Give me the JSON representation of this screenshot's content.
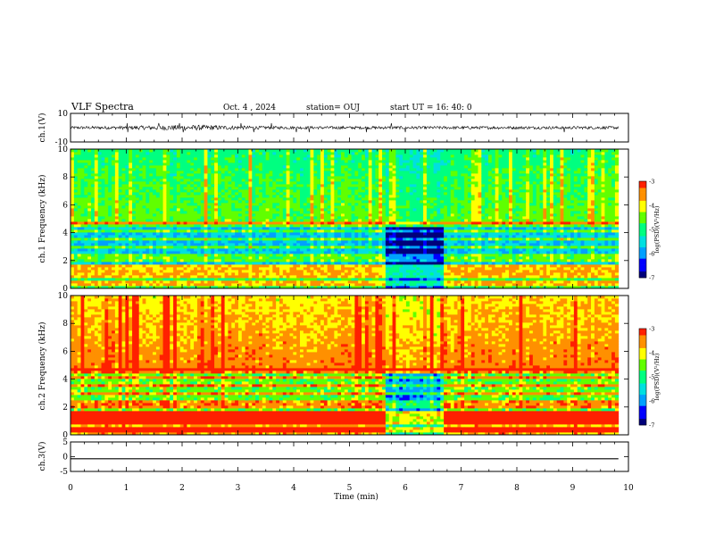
{
  "header": {
    "title": "VLF Spectra",
    "date": "Oct. 4 , 2024",
    "station": "station= OUJ",
    "start": "start UT = 16: 40: 0"
  },
  "chart_data": [
    {
      "type": "line",
      "panel": "ch1-waveform",
      "ylabel": "ch.1(V)",
      "ylim": [
        -10,
        10
      ],
      "yticks": [
        "10",
        "-10"
      ],
      "xlim": [
        0,
        10
      ],
      "x_extent_min": [
        0,
        9.82
      ],
      "baseline": 0,
      "noise_amplitude": 1,
      "spike_times_min": [
        1.02,
        1.58,
        1.95,
        2.02,
        3.06,
        3.28,
        3.6,
        4.05,
        4.28,
        5.3,
        5.75,
        6.0,
        8.85
      ],
      "spike_amplitude": 3.2,
      "color": "#000000"
    },
    {
      "type": "heatmap",
      "panel": "ch1-spectrogram",
      "ylabel": "ch.1 Frequency (kHz)",
      "ylim": [
        0,
        10
      ],
      "yticks": [
        "0",
        "2",
        "4",
        "6",
        "8",
        "10"
      ],
      "xlim": [
        0,
        10
      ],
      "x_extent_min": [
        0,
        9.82
      ],
      "quiet_interval_min": [
        5.65,
        6.7
      ],
      "colorbar": {
        "label": "log(PSD)(V²/Hz)",
        "range": [
          -7,
          -3
        ],
        "ticks": [
          "-3",
          "-4",
          "-5",
          "-6",
          "-7"
        ]
      }
    },
    {
      "type": "heatmap",
      "panel": "ch2-spectrogram",
      "ylabel": "ch.2 Frequency (kHz)",
      "ylim": [
        0,
        10
      ],
      "yticks": [
        "0",
        "2",
        "4",
        "6",
        "8",
        "10"
      ],
      "xlim": [
        0,
        10
      ],
      "x_extent_min": [
        0,
        9.82
      ],
      "quiet_interval_min": [
        5.65,
        6.7
      ],
      "colorbar": {
        "label": "log(PSD)(V²/Hz)",
        "range": [
          -7,
          -3
        ],
        "ticks": [
          "-3",
          "-4",
          "-5",
          "-6",
          "-7"
        ]
      }
    },
    {
      "type": "line",
      "panel": "ch3-waveform",
      "ylabel": "ch.3(V)",
      "ylim": [
        -5,
        5
      ],
      "yticks": [
        "5",
        "0",
        "-5"
      ],
      "xlim": [
        0,
        10
      ],
      "xticks": [
        "0",
        "1",
        "2",
        "3",
        "4",
        "5",
        "6",
        "7",
        "8",
        "9",
        "10"
      ],
      "xlabel": "Time (min)",
      "constant_value": -0.7,
      "color": "#000000"
    }
  ],
  "colormap": [
    "#00007a",
    "#0000ff",
    "#00a0ff",
    "#00e0e0",
    "#00ff80",
    "#60ff00",
    "#ffff00",
    "#ff9000",
    "#ff2000"
  ]
}
